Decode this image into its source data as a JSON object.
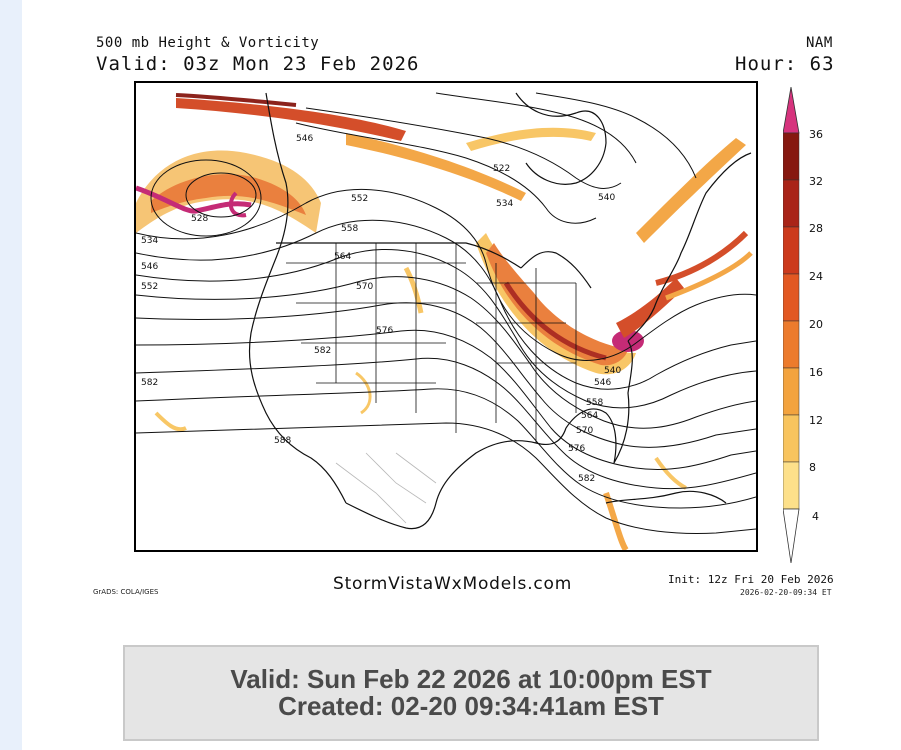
{
  "header": {
    "product_title": "500 mb Height & Vorticity",
    "model_name": "NAM",
    "valid_line": "Valid: 03z Mon 23 Feb 2026",
    "hour_line": "Hour: 63"
  },
  "map": {
    "height_contour_labels_dam": [
      "546",
      "552",
      "558",
      "564",
      "570",
      "576",
      "582",
      "588",
      "528",
      "534",
      "540",
      "522"
    ],
    "colors": {
      "vort_low": "#fbe7a6",
      "vort_mid": "#f0a93c",
      "vort_high": "#d2451f",
      "vort_max": "#8a1414",
      "vort_peak": "#c2206f",
      "contour": "#111111",
      "coast": "#111111",
      "mexico_boundary": "#b8b8b8"
    }
  },
  "colorbar": {
    "tick_labels": [
      "36",
      "32",
      "28",
      "24",
      "20",
      "16",
      "12",
      "8",
      "4"
    ],
    "bins": [
      "#fff8b8",
      "#fde08a",
      "#f8c45e",
      "#f3a33e",
      "#ec7b2d",
      "#e25822",
      "#cc3a1c",
      "#a92418",
      "#861810"
    ],
    "top_arrow_color": "#d6337d"
  },
  "footer": {
    "site": "StormVistaWxModels.com",
    "grads_credit": "GrADS: COLA/IGES",
    "init_line": "Init: 12z Fri 20 Feb 2026",
    "generated_stamp": "2026-02-20-09:34 ET"
  },
  "info_box": {
    "valid_local": "Valid: Sun Feb 22 2026 at 10:00pm EST",
    "created": "Created: 02-20 09:34:41am EST"
  }
}
